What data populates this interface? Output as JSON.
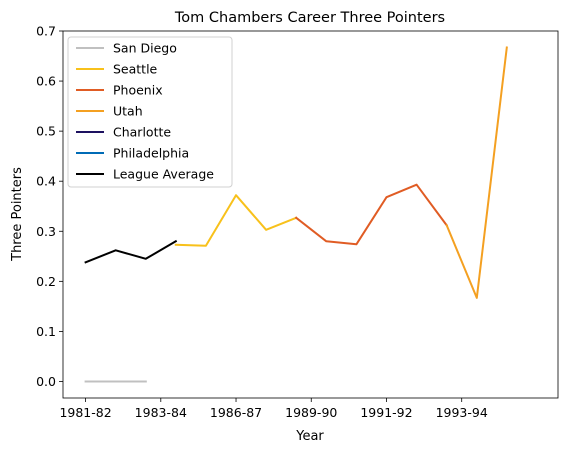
{
  "chart_data": {
    "type": "line",
    "title": "Tom Chambers  Career Three Pointers",
    "xlabel": "Year",
    "ylabel": "Three Pointers",
    "ylim": [
      -0.033,
      0.7
    ],
    "xlim": [
      -0.75,
      15.7
    ],
    "grid": false,
    "legend_position": "top-left",
    "x_tick_labels": [
      {
        "x": 0,
        "label": "1981-82"
      },
      {
        "x": 2.5,
        "label": "1983-84"
      },
      {
        "x": 5,
        "label": "1986-87"
      },
      {
        "x": 7.5,
        "label": "1989-90"
      },
      {
        "x": 10,
        "label": "1991-92"
      },
      {
        "x": 12.5,
        "label": "1993-94"
      }
    ],
    "y_ticks": [
      0.0,
      0.1,
      0.2,
      0.3,
      0.4,
      0.5,
      0.6,
      0.7
    ],
    "y_tick_labels": [
      "0.0",
      "0.1",
      "0.2",
      "0.3",
      "0.4",
      "0.5",
      "0.6",
      "0.7"
    ],
    "series": [
      {
        "name": "San Diego",
        "color": "#c0c0c0",
        "points": [
          [
            0,
            0.0
          ],
          [
            1,
            0.0
          ],
          [
            2,
            0.0
          ]
        ]
      },
      {
        "name": "Seattle",
        "color": "#f8c11b",
        "points": [
          [
            3,
            0.273
          ],
          [
            4,
            0.271
          ],
          [
            5,
            0.372
          ],
          [
            6,
            0.303
          ],
          [
            7,
            0.327
          ]
        ]
      },
      {
        "name": "Phoenix",
        "color": "#e05c24",
        "points": [
          [
            7,
            0.327
          ],
          [
            8,
            0.28
          ],
          [
            9,
            0.274
          ],
          [
            10,
            0.368
          ],
          [
            11,
            0.393
          ],
          [
            12,
            0.312
          ]
        ]
      },
      {
        "name": "Utah",
        "color": "#f4a021",
        "points": [
          [
            12,
            0.312
          ],
          [
            13,
            0.167
          ],
          [
            14,
            0.667
          ]
        ]
      },
      {
        "name": "Charlotte",
        "color": "#1d1160",
        "points": []
      },
      {
        "name": "Philadelphia",
        "color": "#006bb6",
        "points": []
      },
      {
        "name": "League Average",
        "color": "#000000",
        "points": [
          [
            0,
            0.238
          ],
          [
            1,
            0.262
          ],
          [
            2,
            0.245
          ],
          [
            3,
            0.28
          ]
        ]
      }
    ]
  }
}
